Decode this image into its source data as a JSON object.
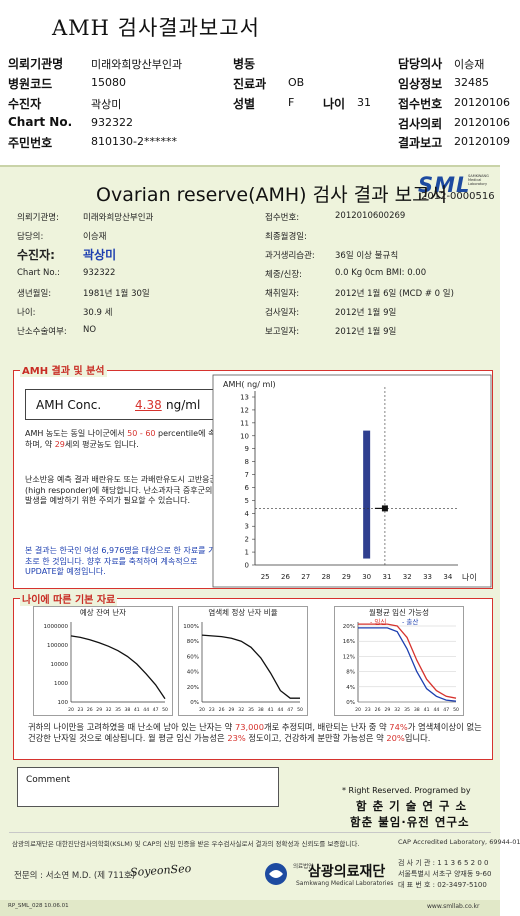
{
  "title": "AMH 검사결과보고서",
  "header": {
    "rows": [
      [
        {
          "label": "의뢰기관명",
          "value": "미래와희망산부인과"
        },
        {
          "label": "병동",
          "value": ""
        },
        {
          "label": "담당의사",
          "value": "이승재"
        }
      ],
      [
        {
          "label": "병원코드",
          "value": "15080"
        },
        {
          "label": "진료과",
          "value": "OB"
        },
        {
          "label": "임상정보",
          "value": "32485"
        }
      ],
      [
        {
          "label": "수진자",
          "value": "곽상미"
        },
        {
          "label": "성별",
          "value": "F"
        },
        {
          "label": "나이",
          "value": "31"
        },
        {
          "label": "접수번호",
          "value": "20120106"
        }
      ],
      [
        {
          "label": "Chart No.",
          "value": "932322"
        },
        {
          "label": "검사의뢰",
          "value": "20120106"
        }
      ],
      [
        {
          "label": "주민번호",
          "value": "810130-2******"
        },
        {
          "label": "결과보고",
          "value": "20120109"
        }
      ]
    ]
  },
  "report": {
    "logo": "SML",
    "logo_sub": "SAMKWANG Medical Laboratory",
    "title": "Ovarian reserve(AMH) 검사 결과 보고서",
    "doc_no": "2012-0000516",
    "left_info": [
      {
        "label": "의뢰기관명:",
        "value": "미래와희망산부인과"
      },
      {
        "label": "담당의:",
        "value": "이승재"
      },
      {
        "label": "수진자:",
        "value": "곽상미"
      },
      {
        "label": "Chart No.:",
        "value": "932322"
      },
      {
        "label": "생년월일:",
        "value": "1981년 1월 30일"
      },
      {
        "label": "나이:",
        "value": "30.9 세"
      },
      {
        "label": "난소수술여부:",
        "value": "NO"
      }
    ],
    "right_info": [
      {
        "label": "접수번호:",
        "value": "2012010600269"
      },
      {
        "label": "최종월경일:",
        "value": ""
      },
      {
        "label": "과거생리습관:",
        "value": "36일 이상 불규칙"
      },
      {
        "label": "체중/신장:",
        "value": "0.0 Kg      0cm   BMI:   0.00"
      },
      {
        "label": "채취일자:",
        "value": "2012년 1월 6일    (MCD # 0 일)"
      },
      {
        "label": "검사일자:",
        "value": "2012년 1월 9일"
      },
      {
        "label": "보고일자:",
        "value": "2012년 1월 9일"
      }
    ],
    "amh_section_title": "AMH 결과 및 분석",
    "conc_label": "AMH Conc.",
    "conc_value": "4.38",
    "conc_unit": "ng/ml",
    "analysis1": [
      "AMH 농도는 동일 나이군에서 ",
      "50 - 60",
      " percentile에 속하며, 약 ",
      "29",
      "세의 평균농도 입니다."
    ],
    "analysis2": "난소반응 예측 결과 배란유도 또는 과배란유도시 고반응군 (high responder)에 해당합니다. 난소과자극 증후군의 발생을 예방하기 위한 주의가 필요할 수 있습니다.",
    "analysis3": "본 결과는 한국인 여성 6,976명을 대상으로 한 자료를 기초로 한 것입니다. 향후 자료를 축적하여 계속적으로 UPDATE할 예정입니다.",
    "age_section_title": "나이에 따른 기본 자료",
    "mini1_title": "예상 잔여 난자",
    "mini2_title": "염색체 정상 난자 비율",
    "mini3_title": "월평균 임신 가능성",
    "mini3_legend_a": "- 임신",
    "mini3_legend_b": "- 출산",
    "summary_parts": [
      "귀하의 나이만을 고려하였을 때 난소에 남아 있는 난자는 약 ",
      "73,000",
      "개로 추정되며, 배란되는 난자 중 약 ",
      "74%",
      "가 염색체이상이 없는 건강한 난자일 것으로 예상됩니다. 월 평균 임신 가능성은 ",
      "23%",
      " 정도이고, 건강하게 분만할 가능성은 약 ",
      "20%",
      "입니다."
    ],
    "comment_label": "Comment",
    "rights": "* Right Reserved. Programed by",
    "center1": "함 춘 기 술 연 구 소",
    "center2": "함춘 불임·유전 연구소",
    "notice": "삼광의료재단은 대한진단검사의학회(KSLM) 및 CAP의 신임 인증을 받은 우수검사실로서 결과의 정확성과 신뢰도를 보증합니다.",
    "cap": "CAP Accredited Laboratory, 69944-01",
    "doctor": "전문의 : 서소연 M.D. (제 711호)",
    "signature": "SoyeonSeo",
    "foundation_small": "의료법인",
    "foundation": "삼광의료재단",
    "foundation_en": "Samkwang Medical Laboratories",
    "lab_no": "검 사 기 관 : 1 1 3 6 5 2 0 0",
    "address": "서울특별시 서초구 양재동 9-60",
    "phone": "대 표 번 호 : 02-3497-5100",
    "form_code": "RP_SML_028  10.06.01",
    "website": "www.smllab.co.kr"
  },
  "chart_data": [
    {
      "type": "scatter",
      "title": "",
      "ylabel": "AMH( ng/ ml)",
      "xlabel": "나이",
      "x_ticks": [
        25,
        26,
        27,
        28,
        29,
        30,
        31,
        32,
        33,
        34
      ],
      "y_ticks": [
        0,
        1,
        2,
        3,
        4,
        5,
        6,
        7,
        8,
        9,
        10,
        11,
        12,
        13
      ],
      "xlim": [
        24.5,
        34.5
      ],
      "ylim": [
        0,
        13
      ],
      "range_bar": {
        "x": 30,
        "low": 0.5,
        "high": 10.4
      },
      "point": {
        "x": 30.9,
        "y": 4.38
      },
      "bar_color": "#2f3f8f"
    },
    {
      "type": "line",
      "title": "예상 잔여 난자",
      "ylabel": "",
      "xlabel": "",
      "y_scale": "log",
      "y_ticks": [
        1000000,
        100000,
        10000,
        1000,
        100
      ],
      "x_ticks": [
        20,
        23,
        26,
        29,
        32,
        35,
        38,
        41,
        44,
        47,
        50
      ],
      "x": [
        20,
        23,
        26,
        29,
        32,
        35,
        38,
        41,
        44,
        47,
        50
      ],
      "values": [
        300000,
        250000,
        190000,
        130000,
        85000,
        50000,
        25000,
        10000,
        3000,
        800,
        150
      ]
    },
    {
      "type": "line",
      "title": "염색체 정상 난자 비율",
      "y_ticks": [
        "100%",
        "80%",
        "60%",
        "40%",
        "20%",
        "0%"
      ],
      "x_ticks": [
        20,
        23,
        26,
        29,
        32,
        35,
        38,
        41,
        44,
        47,
        50
      ],
      "x": [
        20,
        23,
        26,
        29,
        32,
        35,
        38,
        41,
        44,
        47,
        50
      ],
      "values": [
        88,
        87,
        86,
        84,
        80,
        72,
        58,
        38,
        15,
        5,
        5
      ]
    },
    {
      "type": "line",
      "title": "월평균 임신 가능성",
      "y_ticks": [
        "20%",
        "16%",
        "12%",
        "8%",
        "4%",
        "0%"
      ],
      "x_ticks": [
        20,
        23,
        26,
        29,
        32,
        35,
        38,
        41,
        44,
        47,
        50
      ],
      "x": [
        20,
        23,
        26,
        29,
        32,
        35,
        38,
        41,
        44,
        47,
        50
      ],
      "series": [
        {
          "name": "- 임신",
          "color": "#d6332e",
          "values": [
            20.5,
            20.5,
            20.5,
            20.5,
            20,
            17,
            11,
            6,
            3,
            1.5,
            1
          ]
        },
        {
          "name": "- 출산",
          "color": "#1d3fb0",
          "values": [
            19.5,
            19.5,
            19.5,
            19.5,
            18.5,
            14,
            8,
            3.5,
            1.5,
            0.5,
            0.2
          ]
        }
      ]
    }
  ]
}
